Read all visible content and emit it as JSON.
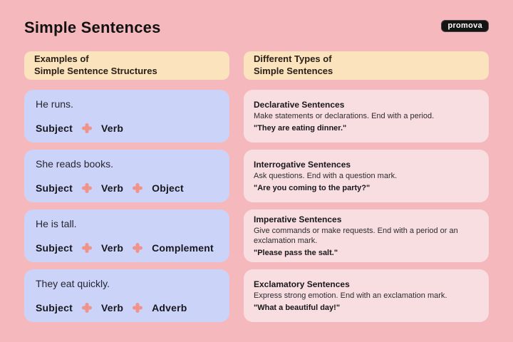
{
  "page": {
    "title": "Simple Sentences",
    "logo_text": "promova"
  },
  "icons": {
    "plus": "+"
  },
  "colors": {
    "background": "#f5b9bd",
    "header_card": "#fbe3bd",
    "structure_card": "#ccd3f9",
    "type_card": "#f9dee1",
    "plus": "#f0938b",
    "text": "#1d1d1f"
  },
  "left_column": {
    "header_line1": "Examples of",
    "header_line2": "Simple Sentence Structures",
    "cards": [
      {
        "sentence": "He runs.",
        "parts": [
          "Subject",
          "Verb"
        ]
      },
      {
        "sentence": "She reads books.",
        "parts": [
          "Subject",
          "Verb",
          "Object"
        ]
      },
      {
        "sentence": "He is tall.",
        "parts": [
          "Subject",
          "Verb",
          "Complement"
        ]
      },
      {
        "sentence": "They eat quickly.",
        "parts": [
          "Subject",
          "Verb",
          "Adverb"
        ]
      }
    ]
  },
  "right_column": {
    "header_line1": "Different Types of",
    "header_line2": "Simple Sentences",
    "cards": [
      {
        "title": "Declarative Sentences",
        "description": "Make statements or declarations. End with a period.",
        "example": "\"They are eating dinner.\""
      },
      {
        "title": "Interrogative Sentences",
        "description": "Ask questions. End with a question mark.",
        "example": "\"Are you coming to the party?\""
      },
      {
        "title": "Imperative Sentences",
        "description": "Give commands or make requests. End with a period or an exclamation mark.",
        "example": "\"Please pass the salt.\""
      },
      {
        "title": "Exclamatory Sentences",
        "description": "Express strong emotion. End with an exclamation mark.",
        "example": "\"What a beautiful day!\""
      }
    ]
  }
}
